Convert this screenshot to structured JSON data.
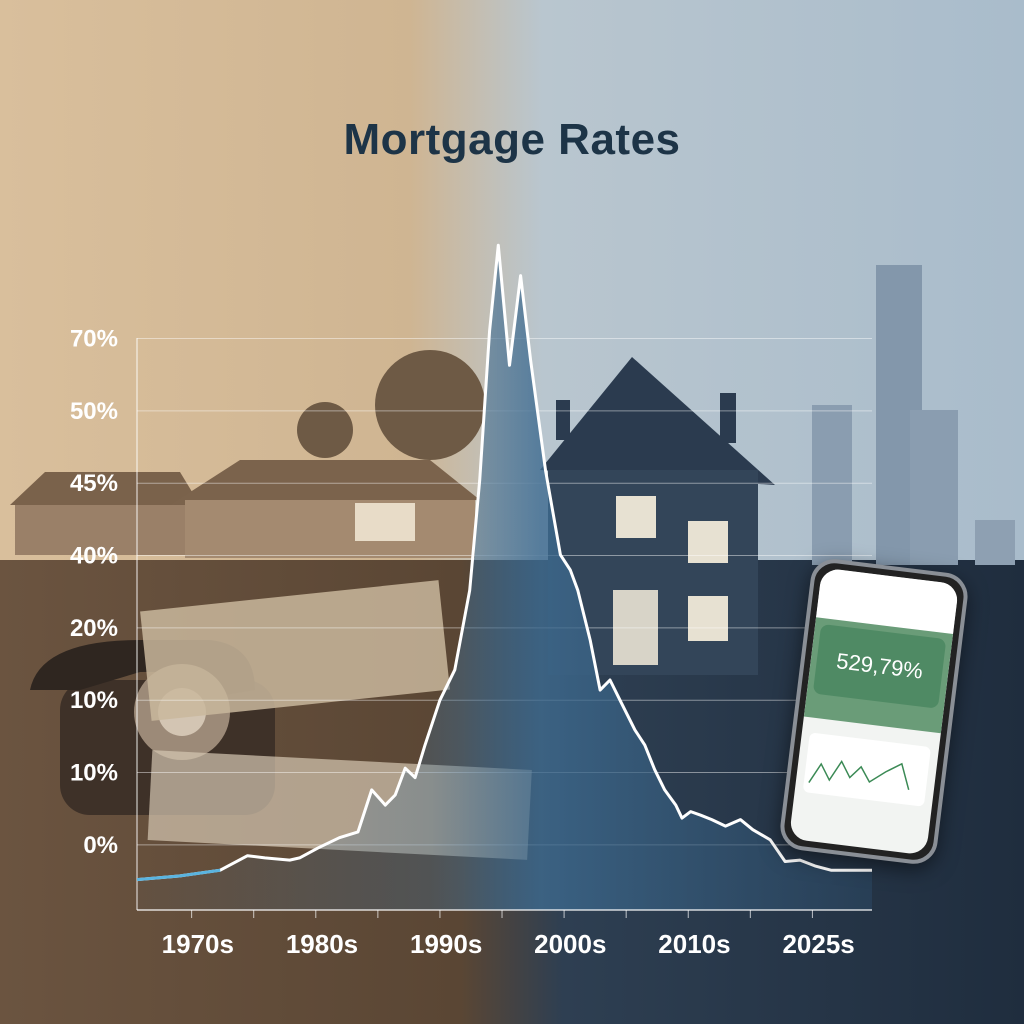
{
  "title": "Mortgage Rates",
  "colors": {
    "title": "#1d3447",
    "line": "#ffffff",
    "area": "#3d6a8f",
    "line_start": "#5ab4e0"
  },
  "phone": {
    "rate_value": "529,79%"
  },
  "chart_data": {
    "type": "area",
    "title": "Mortgage Rates",
    "xlabel": "",
    "ylabel": "",
    "x_tick_labels": [
      "1970s",
      "1980s",
      "1990s",
      "2000s",
      "2010s",
      "2025s"
    ],
    "y_tick_labels": [
      "0%",
      "10%",
      "10%",
      "20%",
      "40%",
      "45%",
      "50%",
      "70%"
    ],
    "xlim": [
      1965.6,
      2024.8
    ],
    "ylim": [
      -9,
      85
    ],
    "grid": true,
    "series": [
      {
        "x": [
          1965.6,
          1969.0,
          1972.3,
          1974.5,
          1975.9,
          1977.9,
          1978.7,
          1980.2,
          1981.9,
          1983.4,
          1984.5,
          1985.6,
          1986.4,
          1987.2,
          1988.0,
          1988.8,
          1990.0,
          1991.2,
          1992.4,
          1993.2,
          1994.0,
          1994.7,
          1995.6,
          1996.5,
          1997.3,
          1998.5,
          1999.7,
          2000.5,
          2001.1,
          2002.1,
          2002.9,
          2003.7,
          2004.5,
          2005.7,
          2006.5,
          2007.3,
          2008.1,
          2009.0,
          2009.5,
          2010.2,
          2011.0,
          2011.9,
          2013.0,
          2014.2,
          2015.2,
          2016.6,
          2017.8,
          2019.0,
          2020.2,
          2021.5,
          2024.8
        ],
        "y": [
          -4.8,
          -4.3,
          -3.5,
          -1.5,
          -1.8,
          -2.1,
          -1.8,
          -0.4,
          1.0,
          1.8,
          7.6,
          5.5,
          6.9,
          10.6,
          9.3,
          13.8,
          20.0,
          24.2,
          35.2,
          50.4,
          71.1,
          82.9,
          66.3,
          78.7,
          67.0,
          51.8,
          40.1,
          38.0,
          35.2,
          28.3,
          21.4,
          22.8,
          20.0,
          15.9,
          13.8,
          10.4,
          7.6,
          5.5,
          3.7,
          4.6,
          4.1,
          3.5,
          2.6,
          3.5,
          2.1,
          0.7,
          -2.3,
          -2.1,
          -2.9,
          -3.5,
          -3.5
        ]
      }
    ]
  }
}
